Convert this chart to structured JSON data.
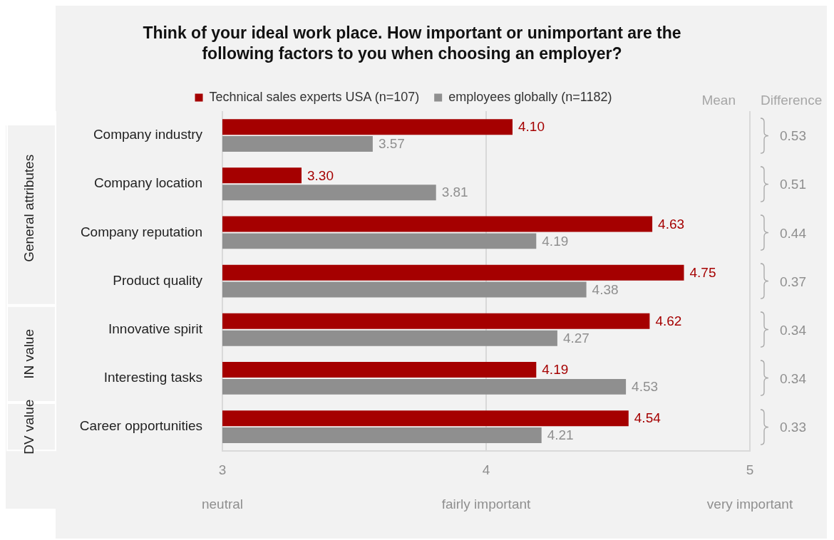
{
  "chart_data": {
    "type": "bar",
    "orientation": "horizontal",
    "title": "Think of your ideal work place. How important or unimportant are the following factors to you when choosing an employer?",
    "categories": [
      "Company industry",
      "Company location",
      "Company reputation",
      "Product quality",
      "Innovative spirit",
      "Interesting tasks",
      "Career opportunities"
    ],
    "series": [
      {
        "name": "Technical sales experts USA (n=107)",
        "color": "#a50000",
        "values": [
          4.1,
          3.3,
          4.63,
          4.75,
          4.62,
          4.19,
          4.54
        ],
        "value_labels": [
          "4.10",
          "3.30",
          "4.63",
          "4.75",
          "4.62",
          "4.19",
          "4.54"
        ]
      },
      {
        "name": "employees globally (n=1182)",
        "color": "#8f8f8f",
        "values": [
          3.57,
          3.81,
          4.19,
          4.38,
          4.27,
          4.53,
          4.21
        ],
        "value_labels": [
          "3.57",
          "3.81",
          "4.19",
          "4.38",
          "4.27",
          "4.53",
          "4.21"
        ]
      }
    ],
    "xlim": [
      3,
      5
    ],
    "xticks": [
      3,
      4,
      5
    ],
    "grid": "x",
    "legend": "top",
    "annotations": [
      "Mean",
      "Difference",
      "neutral",
      "fairly important",
      "very important",
      {
        "text": "General attributes",
        "y": "Company industry"
      },
      {
        "text": "IN value",
        "y": "Innovative spirit"
      },
      {
        "text": "DV value",
        "y": "Career opportunities"
      },
      "0.53",
      "0.51",
      "0.44",
      "0.37",
      "0.34",
      "0.34",
      "0.33"
    ]
  }
}
